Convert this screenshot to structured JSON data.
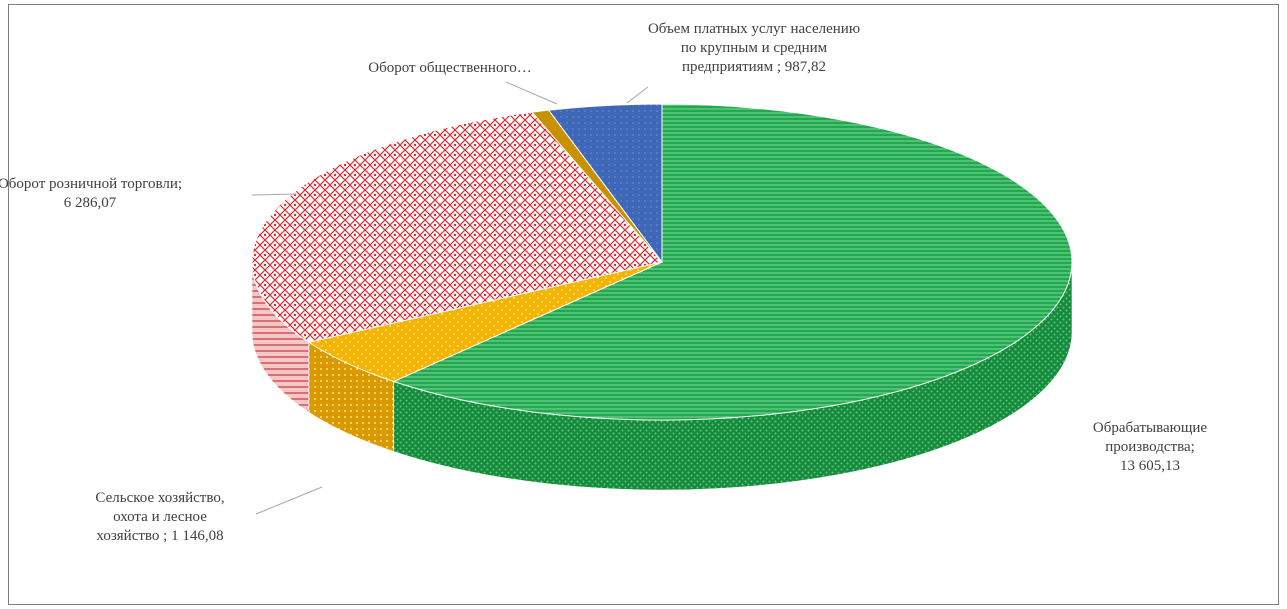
{
  "chart_data": {
    "type": "pie",
    "title": "",
    "slices": [
      {
        "label": "Обрабатывающие производства",
        "value": 13605.13,
        "value_text": "13 605,13",
        "color": "#1fa34a",
        "label_lines": [
          "Обрабатывающие",
          "производства;",
          "13 605,13"
        ]
      },
      {
        "label": "Сельское хозяйство, охота и лесное хозяйство",
        "value": 1146.08,
        "value_text": "1 146,08",
        "color": "#f4b400",
        "label_lines": [
          "Сельское хозяйство,",
          "охота и лесное",
          "хозяйство ; 1 146,08"
        ]
      },
      {
        "label": "Оборот розничной торговли",
        "value": 6286.07,
        "value_text": "6 286,07",
        "color": "#e0242b",
        "label_lines": [
          "Оборот розничной  торговли;",
          "6 286,07"
        ]
      },
      {
        "label": "Оборот общественного…",
        "value": 150,
        "value_text": "",
        "color": "#c89100",
        "label_lines": [
          "Оборот общественного…"
        ]
      },
      {
        "label": "Объем платных услуг населению по крупным и средним предприятиям",
        "value": 987.82,
        "value_text": "987,82",
        "color": "#3f67b8",
        "label_lines": [
          "Объем платных услуг населению",
          "по крупным и средним",
          "предприятиям ; 987,82"
        ]
      }
    ]
  }
}
